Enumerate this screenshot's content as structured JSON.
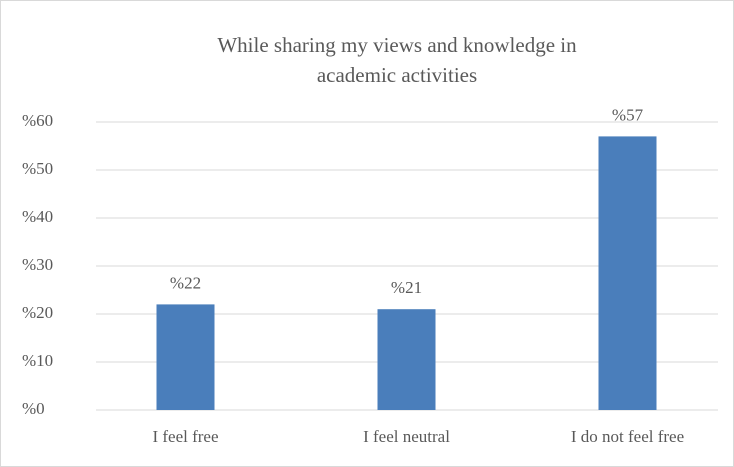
{
  "chart_data": {
    "type": "bar",
    "title": [
      "While sharing my views and knowledge in",
      "academic activities"
    ],
    "categories": [
      "I feel free",
      "I feel neutral",
      "I do not feel free"
    ],
    "values": [
      22,
      21,
      57
    ],
    "value_labels": [
      "%22",
      "%21",
      "%57"
    ],
    "color": "#4a7ebb",
    "ylim": [
      0,
      60
    ],
    "yticks": [
      {
        "value": 0,
        "label": "%0"
      },
      {
        "value": 10,
        "label": "%10"
      },
      {
        "value": 20,
        "label": "%20"
      },
      {
        "value": 30,
        "label": "%30"
      },
      {
        "value": 40,
        "label": "%40"
      },
      {
        "value": 50,
        "label": "%50"
      },
      {
        "value": 60,
        "label": "%60"
      }
    ],
    "grid": true
  }
}
